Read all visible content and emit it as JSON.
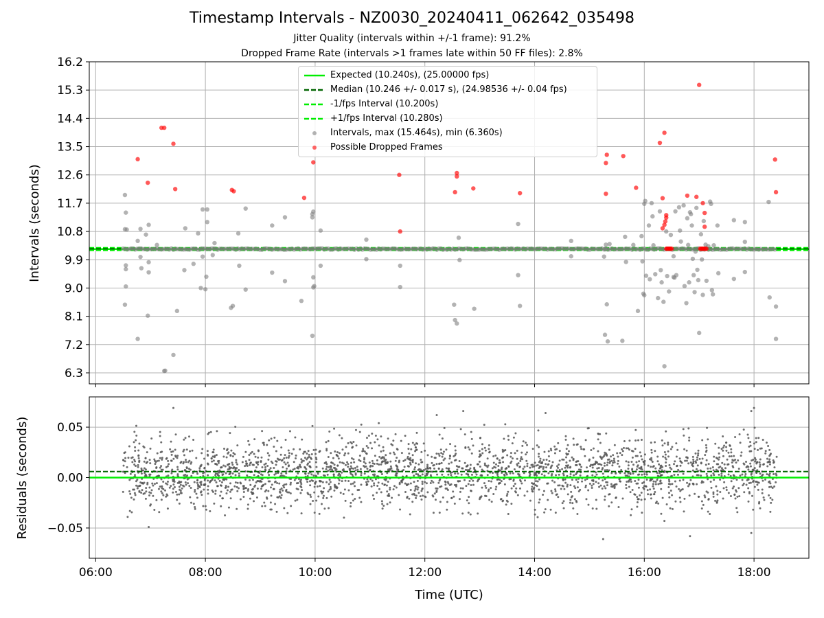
{
  "title": "Timestamp Intervals - NZ0030_20240411_062642_035498",
  "subtitle_1": "Jitter Quality (intervals within +/-1 frame): 91.2%",
  "subtitle_2": "Dropped Frame Rate (intervals >1 frames late within 50 FF files): 2.8%",
  "legend": {
    "expected": "Expected (10.240s), (25.00000 fps)",
    "median": "Median (10.246 +/- 0.017 s), (24.98536 +/- 0.04 fps)",
    "minus_fps": "-1/fps Interval (10.200s)",
    "plus_fps": "+1/fps Interval (10.280s)",
    "intervals": "Intervals, max (15.464s), min (6.360s)",
    "dropped": "Possible Dropped Frames"
  },
  "colors": {
    "expected": "#00ee00",
    "median": "#006400",
    "bounds": "#00ee00",
    "intervals": "#808080",
    "dropped": "#ff0000",
    "residuals": "#555555"
  },
  "chart_data": [
    {
      "type": "scatter",
      "title": "Timestamp Intervals - NZ0030_20240411_062642_035498",
      "xlabel": "",
      "ylabel": "Intervals (seconds)",
      "xlim": [
        "05:53",
        "19:00"
      ],
      "ylim": [
        5.95,
        16.2
      ],
      "x_ticks": [
        "06:00",
        "08:00",
        "10:00",
        "12:00",
        "14:00",
        "16:00",
        "18:00"
      ],
      "y_ticks": [
        6.3,
        7.2,
        8.1,
        9.0,
        9.9,
        10.8,
        11.7,
        12.6,
        13.5,
        14.4,
        15.3,
        16.2
      ],
      "y_tick_labels": [
        "6.3",
        "7.2",
        "8.1",
        "9.0",
        "9.9",
        "10.8",
        "11.7",
        "12.6",
        "13.5",
        "14.4",
        "15.3",
        "16.2"
      ],
      "grid": true,
      "legend_position": "top-center",
      "reference_lines": {
        "expected": 10.24,
        "median": 10.246,
        "minus_fps": 10.2,
        "plus_fps": 10.28
      },
      "core_band": {
        "x_range": [
          "06:30",
          "18:25"
        ],
        "center": 10.24,
        "spread": 0.02
      },
      "series": [
        {
          "name": "Intervals, max (15.464s), min (6.360s)",
          "points": [
            [
              "06:32",
              11.96
            ],
            [
              "06:32",
              10.87
            ],
            [
              "06:33",
              11.4
            ],
            [
              "06:33",
              9.72
            ],
            [
              "06:33",
              9.6
            ],
            [
              "06:33",
              9.05
            ],
            [
              "06:32",
              8.47
            ],
            [
              "06:34",
              10.86
            ],
            [
              "06:46",
              7.38
            ],
            [
              "06:49",
              10.88
            ],
            [
              "06:46",
              10.5
            ],
            [
              "06:49",
              9.99
            ],
            [
              "06:50",
              9.63
            ],
            [
              "06:55",
              10.7
            ],
            [
              "06:58",
              11.01
            ],
            [
              "06:58",
              9.82
            ],
            [
              "06:58",
              9.5
            ],
            [
              "06:57",
              8.12
            ],
            [
              "07:07",
              10.37
            ],
            [
              "07:15",
              6.36
            ],
            [
              "07:16",
              6.37
            ],
            [
              "07:25",
              6.87
            ],
            [
              "07:29",
              8.27
            ],
            [
              "07:38",
              10.9
            ],
            [
              "07:37",
              9.57
            ],
            [
              "07:47",
              9.77
            ],
            [
              "07:52",
              10.74
            ],
            [
              "07:57",
              10.0
            ],
            [
              "07:57",
              11.5
            ],
            [
              "08:02",
              11.5
            ],
            [
              "08:02",
              11.1
            ],
            [
              "08:01",
              9.36
            ],
            [
              "08:00",
              8.96
            ],
            [
              "07:55",
              9.0
            ],
            [
              "08:10",
              10.43
            ],
            [
              "08:08",
              10.05
            ],
            [
              "08:28",
              8.37
            ],
            [
              "08:30",
              8.43
            ],
            [
              "08:36",
              10.74
            ],
            [
              "08:37",
              9.71
            ],
            [
              "08:44",
              11.53
            ],
            [
              "08:44",
              8.95
            ],
            [
              "09:13",
              10.99
            ],
            [
              "09:13",
              9.49
            ],
            [
              "09:27",
              11.25
            ],
            [
              "09:27",
              9.22
            ],
            [
              "09:45",
              8.59
            ],
            [
              "09:57",
              11.25
            ],
            [
              "09:57",
              11.35
            ],
            [
              "09:58",
              11.43
            ],
            [
              "09:58",
              9.34
            ],
            [
              "09:59",
              9.06
            ],
            [
              "09:58",
              9.02
            ],
            [
              "09:57",
              7.48
            ],
            [
              "10:06",
              10.83
            ],
            [
              "10:06",
              9.71
            ],
            [
              "10:56",
              10.54
            ],
            [
              "10:56",
              9.92
            ],
            [
              "11:33",
              9.71
            ],
            [
              "11:33",
              9.03
            ],
            [
              "12:32",
              8.47
            ],
            [
              "12:33",
              7.98
            ],
            [
              "12:35",
              7.87
            ],
            [
              "12:37",
              10.6
            ],
            [
              "12:38",
              9.89
            ],
            [
              "12:54",
              8.34
            ],
            [
              "13:42",
              11.04
            ],
            [
              "13:42",
              9.41
            ],
            [
              "13:44",
              8.43
            ],
            [
              "14:40",
              10.5
            ],
            [
              "14:40",
              10.01
            ],
            [
              "15:16",
              10.0
            ],
            [
              "15:17",
              10.23
            ],
            [
              "15:18",
              10.38
            ],
            [
              "15:19",
              8.48
            ],
            [
              "15:17",
              7.51
            ],
            [
              "15:20",
              7.3
            ],
            [
              "15:22",
              10.4
            ],
            [
              "15:36",
              7.32
            ],
            [
              "15:39",
              10.63
            ],
            [
              "15:40",
              9.83
            ],
            [
              "15:48",
              10.37
            ],
            [
              "15:53",
              8.27
            ],
            [
              "15:57",
              10.65
            ],
            [
              "15:58",
              9.85
            ],
            [
              "15:59",
              8.82
            ],
            [
              "16:00",
              8.77
            ],
            [
              "16:01",
              11.77
            ],
            [
              "16:00",
              11.68
            ],
            [
              "16:02",
              9.39
            ],
            [
              "16:05",
              10.99
            ],
            [
              "16:06",
              9.28
            ],
            [
              "16:08",
              11.7
            ],
            [
              "16:09",
              11.28
            ],
            [
              "16:10",
              10.36
            ],
            [
              "16:12",
              9.44
            ],
            [
              "16:15",
              8.68
            ],
            [
              "16:17",
              11.44
            ],
            [
              "16:18",
              9.57
            ],
            [
              "16:19",
              9.18
            ],
            [
              "16:21",
              8.56
            ],
            [
              "16:22",
              6.51
            ],
            [
              "16:24",
              10.8
            ],
            [
              "16:25",
              9.38
            ],
            [
              "16:27",
              8.89
            ],
            [
              "16:29",
              10.69
            ],
            [
              "16:32",
              10.01
            ],
            [
              "16:32",
              9.35
            ],
            [
              "16:33",
              9.33
            ],
            [
              "16:34",
              11.44
            ],
            [
              "16:35",
              9.41
            ],
            [
              "16:38",
              11.57
            ],
            [
              "16:39",
              10.83
            ],
            [
              "16:40",
              10.48
            ],
            [
              "16:43",
              11.63
            ],
            [
              "16:44",
              9.06
            ],
            [
              "16:46",
              8.52
            ],
            [
              "16:47",
              11.22
            ],
            [
              "16:48",
              10.37
            ],
            [
              "16:49",
              9.18
            ],
            [
              "16:50",
              11.41
            ],
            [
              "16:51",
              11.35
            ],
            [
              "16:52",
              10.99
            ],
            [
              "16:53",
              9.93
            ],
            [
              "16:54",
              9.41
            ],
            [
              "16:55",
              8.87
            ],
            [
              "16:56",
              10.16
            ],
            [
              "16:57",
              11.55
            ],
            [
              "16:58",
              9.58
            ],
            [
              "16:59",
              9.25
            ],
            [
              "17:00",
              7.57
            ],
            [
              "17:02",
              10.71
            ],
            [
              "17:03",
              9.91
            ],
            [
              "17:04",
              8.78
            ],
            [
              "17:05",
              11.13
            ],
            [
              "17:07",
              10.38
            ],
            [
              "17:08",
              9.23
            ],
            [
              "17:10",
              10.33
            ],
            [
              "17:12",
              11.75
            ],
            [
              "17:13",
              11.68
            ],
            [
              "17:14",
              8.93
            ],
            [
              "17:15",
              8.8
            ],
            [
              "17:16",
              10.36
            ],
            [
              "17:20",
              10.99
            ],
            [
              "17:21",
              9.47
            ],
            [
              "17:38",
              11.16
            ],
            [
              "17:38",
              9.29
            ],
            [
              "17:50",
              11.1
            ],
            [
              "17:50",
              10.47
            ],
            [
              "17:50",
              9.51
            ],
            [
              "18:16",
              11.74
            ],
            [
              "18:17",
              8.7
            ],
            [
              "18:24",
              8.41
            ],
            [
              "18:24",
              7.38
            ]
          ]
        },
        {
          "name": "Possible Dropped Frames",
          "points": [
            [
              "06:46",
              13.1
            ],
            [
              "06:57",
              12.35
            ],
            [
              "07:12",
              14.1
            ],
            [
              "07:15",
              14.1
            ],
            [
              "07:25",
              13.59
            ],
            [
              "07:27",
              12.15
            ],
            [
              "08:29",
              12.12
            ],
            [
              "08:31",
              12.08
            ],
            [
              "09:48",
              11.87
            ],
            [
              "09:58",
              13.0
            ],
            [
              "11:32",
              12.6
            ],
            [
              "11:33",
              10.8
            ],
            [
              "12:33",
              12.05
            ],
            [
              "12:35",
              12.55
            ],
            [
              "12:35",
              12.66
            ],
            [
              "12:53",
              12.17
            ],
            [
              "13:44",
              12.02
            ],
            [
              "15:18",
              12.0
            ],
            [
              "15:18",
              12.98
            ],
            [
              "15:19",
              13.24
            ],
            [
              "15:37",
              13.2
            ],
            [
              "15:51",
              12.19
            ],
            [
              "16:17",
              13.62
            ],
            [
              "16:20",
              11.86
            ],
            [
              "16:22",
              13.94
            ],
            [
              "16:20",
              10.9
            ],
            [
              "16:22",
              11.01
            ],
            [
              "16:23",
              11.12
            ],
            [
              "16:24",
              11.24
            ],
            [
              "16:24",
              11.32
            ],
            [
              "16:24",
              10.25
            ],
            [
              "16:25",
              10.25
            ],
            [
              "16:26",
              10.25
            ],
            [
              "16:27",
              10.25
            ],
            [
              "16:28",
              10.25
            ],
            [
              "16:29",
              10.25
            ],
            [
              "16:30",
              10.25
            ],
            [
              "16:47",
              11.94
            ],
            [
              "16:57",
              11.9
            ],
            [
              "17:00",
              15.464
            ],
            [
              "17:04",
              11.7
            ],
            [
              "17:06",
              11.39
            ],
            [
              "17:06",
              10.95
            ],
            [
              "17:01",
              10.25
            ],
            [
              "17:02",
              10.25
            ],
            [
              "17:03",
              10.25
            ],
            [
              "17:04",
              10.25
            ],
            [
              "17:05",
              10.25
            ],
            [
              "17:06",
              10.25
            ],
            [
              "17:07",
              10.25
            ],
            [
              "17:08",
              10.25
            ],
            [
              "18:23",
              13.09
            ],
            [
              "18:24",
              12.05
            ]
          ]
        }
      ]
    },
    {
      "type": "scatter",
      "title": "",
      "xlabel": "Time (UTC)",
      "ylabel": "Residuals (seconds)",
      "xlim": [
        "05:53",
        "19:00"
      ],
      "ylim": [
        -0.08,
        0.08
      ],
      "x_ticks": [
        "06:00",
        "08:00",
        "10:00",
        "12:00",
        "14:00",
        "16:00",
        "18:00"
      ],
      "y_ticks": [
        -0.05,
        0.0,
        0.05
      ],
      "y_tick_labels": [
        "−0.05",
        "0.00",
        "0.05"
      ],
      "grid": true,
      "reference_lines": {
        "zero": 0.0,
        "median_offset": 0.006
      },
      "residual_cloud": {
        "x_range": [
          "06:30",
          "18:25"
        ],
        "center": 0.005,
        "std": 0.017,
        "count": 2600
      },
      "series": [
        {
          "name": "Residuals",
          "notable_points": [
            [
              "07:25",
              0.069
            ],
            [
              "06:58",
              -0.049
            ],
            [
              "12:13",
              0.062
            ],
            [
              "12:42",
              0.066
            ],
            [
              "14:12",
              0.064
            ],
            [
              "15:15",
              -0.061
            ],
            [
              "16:22",
              -0.043
            ],
            [
              "16:50",
              -0.058
            ],
            [
              "17:57",
              0.066
            ],
            [
              "18:00",
              0.069
            ],
            [
              "17:57",
              -0.055
            ]
          ]
        }
      ]
    }
  ]
}
